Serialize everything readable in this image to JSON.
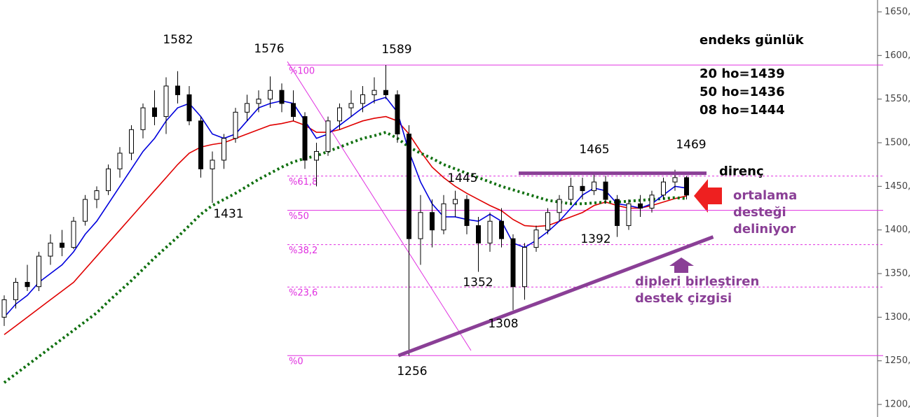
{
  "chart_data": {
    "type": "candlestick",
    "title": "endeks günlük",
    "ylim": [
      1185.6,
      1663.6
    ],
    "yticks": [
      {
        "value": 1200,
        "label": "1200,"
      },
      {
        "value": 1250,
        "label": "1250,"
      },
      {
        "value": 1300,
        "label": "1300,"
      },
      {
        "value": 1350,
        "label": "1350,"
      },
      {
        "value": 1400,
        "label": "1400,"
      },
      {
        "value": 1450,
        "label": "1450,"
      },
      {
        "value": 1500,
        "label": "1500,"
      },
      {
        "value": 1550,
        "label": "1550,"
      },
      {
        "value": 1600,
        "label": "1600,"
      },
      {
        "value": 1650,
        "label": "1650,"
      }
    ],
    "ohlc": [
      [
        1300,
        1325,
        1290,
        1320
      ],
      [
        1320,
        1345,
        1310,
        1340
      ],
      [
        1340,
        1360,
        1330,
        1335
      ],
      [
        1335,
        1375,
        1330,
        1370
      ],
      [
        1370,
        1395,
        1360,
        1385
      ],
      [
        1385,
        1400,
        1370,
        1380
      ],
      [
        1380,
        1415,
        1378,
        1410
      ],
      [
        1410,
        1440,
        1405,
        1435
      ],
      [
        1435,
        1450,
        1425,
        1445
      ],
      [
        1445,
        1475,
        1440,
        1470
      ],
      [
        1470,
        1495,
        1460,
        1488
      ],
      [
        1488,
        1520,
        1480,
        1515
      ],
      [
        1515,
        1545,
        1505,
        1540
      ],
      [
        1540,
        1560,
        1520,
        1530
      ],
      [
        1530,
        1575,
        1510,
        1565
      ],
      [
        1565,
        1582,
        1545,
        1555
      ],
      [
        1555,
        1565,
        1520,
        1525
      ],
      [
        1525,
        1530,
        1460,
        1470
      ],
      [
        1470,
        1490,
        1431,
        1480
      ],
      [
        1480,
        1510,
        1470,
        1505
      ],
      [
        1505,
        1540,
        1500,
        1535
      ],
      [
        1535,
        1555,
        1525,
        1545
      ],
      [
        1545,
        1560,
        1535,
        1550
      ],
      [
        1550,
        1576,
        1540,
        1560
      ],
      [
        1560,
        1568,
        1535,
        1545
      ],
      [
        1545,
        1560,
        1525,
        1530
      ],
      [
        1530,
        1535,
        1470,
        1480
      ],
      [
        1480,
        1500,
        1450,
        1490
      ],
      [
        1490,
        1530,
        1485,
        1525
      ],
      [
        1525,
        1545,
        1515,
        1540
      ],
      [
        1540,
        1560,
        1530,
        1545
      ],
      [
        1545,
        1565,
        1535,
        1555
      ],
      [
        1555,
        1575,
        1545,
        1560
      ],
      [
        1560,
        1589,
        1550,
        1555
      ],
      [
        1555,
        1560,
        1500,
        1510
      ],
      [
        1510,
        1520,
        1256,
        1390
      ],
      [
        1390,
        1440,
        1360,
        1420
      ],
      [
        1420,
        1435,
        1380,
        1400
      ],
      [
        1400,
        1440,
        1395,
        1430
      ],
      [
        1430,
        1445,
        1415,
        1435
      ],
      [
        1435,
        1440,
        1395,
        1405
      ],
      [
        1405,
        1415,
        1352,
        1385
      ],
      [
        1385,
        1420,
        1375,
        1410
      ],
      [
        1410,
        1425,
        1380,
        1390
      ],
      [
        1390,
        1395,
        1308,
        1335
      ],
      [
        1335,
        1385,
        1320,
        1380
      ],
      [
        1380,
        1405,
        1375,
        1400
      ],
      [
        1400,
        1425,
        1395,
        1420
      ],
      [
        1420,
        1440,
        1410,
        1435
      ],
      [
        1435,
        1460,
        1430,
        1450
      ],
      [
        1450,
        1460,
        1435,
        1445
      ],
      [
        1445,
        1465,
        1440,
        1455
      ],
      [
        1455,
        1462,
        1430,
        1435
      ],
      [
        1435,
        1440,
        1392,
        1405
      ],
      [
        1405,
        1435,
        1400,
        1430
      ],
      [
        1430,
        1440,
        1415,
        1425
      ],
      [
        1425,
        1445,
        1420,
        1440
      ],
      [
        1440,
        1460,
        1435,
        1455
      ],
      [
        1455,
        1469,
        1445,
        1460
      ],
      [
        1460,
        1462,
        1435,
        1440
      ]
    ],
    "series": [
      {
        "name": "20 ho=1439",
        "color": "#e00000",
        "values": [
          1280,
          1290,
          1300,
          1310,
          1320,
          1330,
          1340,
          1355,
          1370,
          1385,
          1400,
          1415,
          1430,
          1445,
          1460,
          1475,
          1488,
          1495,
          1498,
          1500,
          1505,
          1510,
          1515,
          1520,
          1522,
          1525,
          1520,
          1512,
          1512,
          1515,
          1520,
          1525,
          1528,
          1530,
          1525,
          1510,
          1490,
          1472,
          1460,
          1450,
          1442,
          1435,
          1428,
          1422,
          1412,
          1405,
          1404,
          1405,
          1410,
          1415,
          1420,
          1428,
          1432,
          1428,
          1425,
          1425,
          1428,
          1432,
          1436,
          1439
        ]
      },
      {
        "name": "50 ho=1436",
        "color": "#107010",
        "values": [
          1225,
          1235,
          1245,
          1255,
          1265,
          1275,
          1285,
          1295,
          1305,
          1318,
          1330,
          1342,
          1355,
          1368,
          1380,
          1392,
          1405,
          1418,
          1428,
          1435,
          1442,
          1450,
          1458,
          1465,
          1472,
          1478,
          1482,
          1485,
          1490,
          1495,
          1500,
          1505,
          1508,
          1512,
          1505,
          1495,
          1488,
          1482,
          1475,
          1470,
          1465,
          1460,
          1455,
          1450,
          1446,
          1442,
          1438,
          1434,
          1432,
          1430,
          1430,
          1431,
          1432,
          1432,
          1433,
          1434,
          1435,
          1436,
          1437,
          1436
        ]
      },
      {
        "name": "08 ho=1444",
        "color": "#0000dd",
        "values": [
          1300,
          1315,
          1325,
          1340,
          1350,
          1360,
          1375,
          1395,
          1410,
          1430,
          1450,
          1470,
          1490,
          1505,
          1525,
          1540,
          1545,
          1530,
          1510,
          1505,
          1510,
          1525,
          1540,
          1545,
          1548,
          1545,
          1525,
          1505,
          1510,
          1520,
          1530,
          1540,
          1548,
          1552,
          1535,
          1490,
          1455,
          1430,
          1415,
          1415,
          1412,
          1410,
          1418,
          1410,
          1385,
          1380,
          1388,
          1398,
          1410,
          1425,
          1440,
          1448,
          1445,
          1430,
          1428,
          1425,
          1430,
          1440,
          1450,
          1448
        ]
      }
    ],
    "fib_levels": [
      {
        "value": 1589,
        "label": "%100"
      },
      {
        "value": 1461.8,
        "label": "%61,8"
      },
      {
        "value": 1422.5,
        "label": "%50"
      },
      {
        "value": 1383.2,
        "label": "%38,2"
      },
      {
        "value": 1334.6,
        "label": "%23,6"
      },
      {
        "value": 1256,
        "label": "%0"
      }
    ],
    "peak_labels": [
      1582,
      1576,
      1589,
      1431,
      1445,
      1352,
      1308,
      1256,
      1392,
      1465,
      1469
    ],
    "resistance": {
      "value": 1465,
      "label": "direnç"
    },
    "support_line": {
      "start": [
        35,
        1256
      ],
      "end": [
        61,
        1392
      ],
      "label": [
        "dipleri birleştiren",
        "destek çizgisi"
      ]
    },
    "ma_note": [
      "ortalama",
      "desteği",
      "deliniyor"
    ]
  }
}
